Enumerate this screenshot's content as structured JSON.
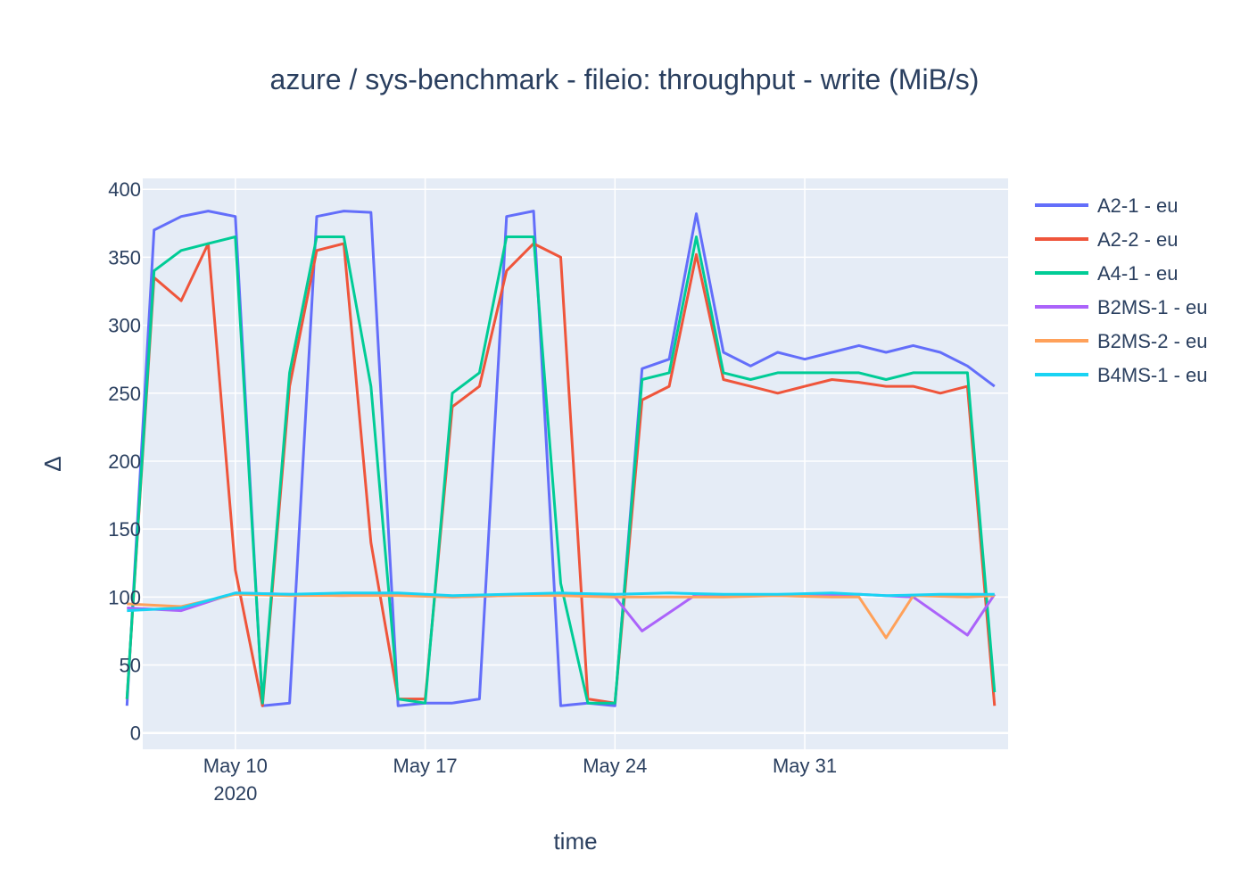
{
  "chart_data": {
    "type": "line",
    "title": "azure / sys-benchmark - fileio: throughput - write (MiB/s)",
    "xlabel": "time",
    "ylabel": "Δ",
    "x_range": [
      "2020-05-06T14:00",
      "2020-06-07T12:00"
    ],
    "xlim": [
      "2020-05-06T14:00",
      "2020-06-07T12:00"
    ],
    "ylim": [
      -12,
      408
    ],
    "y_ticks": [
      0,
      50,
      100,
      150,
      200,
      250,
      300,
      350,
      400
    ],
    "y_tick_labels": [
      "0",
      "50",
      "100",
      "150",
      "200",
      "250",
      "300",
      "350",
      "400"
    ],
    "x_ticks": [
      {
        "value": "2020-05-10",
        "label": "May 10",
        "sub": "2020"
      },
      {
        "value": "2020-05-17",
        "label": "May 17",
        "sub": ""
      },
      {
        "value": "2020-05-24",
        "label": "May 24",
        "sub": ""
      },
      {
        "value": "2020-05-31",
        "label": "May 31",
        "sub": ""
      }
    ],
    "grid": true,
    "legend_position": "right",
    "plot_bgcolor": "#e5ecf6",
    "series": [
      {
        "name": "A2-1 - eu",
        "color": "#636efa",
        "x": [
          "2020-05-06",
          "2020-05-07",
          "2020-05-08",
          "2020-05-09",
          "2020-05-10",
          "2020-05-11",
          "2020-05-12",
          "2020-05-13",
          "2020-05-14",
          "2020-05-15",
          "2020-05-16",
          "2020-05-17",
          "2020-05-18",
          "2020-05-19",
          "2020-05-20",
          "2020-05-21",
          "2020-05-22",
          "2020-05-23",
          "2020-05-24",
          "2020-05-25",
          "2020-05-26",
          "2020-05-27",
          "2020-05-28",
          "2020-05-29",
          "2020-05-30",
          "2020-05-31",
          "2020-06-01",
          "2020-06-02",
          "2020-06-03",
          "2020-06-04",
          "2020-06-05",
          "2020-06-06",
          "2020-06-07"
        ],
        "values": [
          20,
          370,
          380,
          384,
          380,
          20,
          22,
          380,
          384,
          383,
          20,
          22,
          22,
          25,
          380,
          384,
          20,
          22,
          20,
          268,
          275,
          382,
          280,
          270,
          280,
          275,
          280,
          285,
          280,
          285,
          280,
          270,
          255
        ]
      },
      {
        "name": "A2-2 - eu",
        "color": "#ef553b",
        "x": [
          "2020-05-06",
          "2020-05-07",
          "2020-05-08",
          "2020-05-09",
          "2020-05-10",
          "2020-05-11",
          "2020-05-12",
          "2020-05-13",
          "2020-05-14",
          "2020-05-15",
          "2020-05-16",
          "2020-05-17",
          "2020-05-18",
          "2020-05-19",
          "2020-05-20",
          "2020-05-21",
          "2020-05-22",
          "2020-05-23",
          "2020-05-24",
          "2020-05-25",
          "2020-05-26",
          "2020-05-27",
          "2020-05-28",
          "2020-05-29",
          "2020-05-30",
          "2020-05-31",
          "2020-06-01",
          "2020-06-02",
          "2020-06-03",
          "2020-06-04",
          "2020-06-05",
          "2020-06-06",
          "2020-06-07"
        ],
        "values": [
          25,
          335,
          318,
          360,
          120,
          20,
          255,
          355,
          360,
          140,
          25,
          25,
          240,
          255,
          340,
          360,
          350,
          25,
          22,
          245,
          255,
          352,
          260,
          255,
          250,
          255,
          260,
          258,
          255,
          255,
          250,
          255,
          20
        ]
      },
      {
        "name": "A4-1 - eu",
        "color": "#00cc96",
        "x": [
          "2020-05-06",
          "2020-05-07",
          "2020-05-08",
          "2020-05-09",
          "2020-05-10",
          "2020-05-11",
          "2020-05-12",
          "2020-05-13",
          "2020-05-14",
          "2020-05-15",
          "2020-05-16",
          "2020-05-17",
          "2020-05-18",
          "2020-05-19",
          "2020-05-20",
          "2020-05-21",
          "2020-05-22",
          "2020-05-23",
          "2020-05-24",
          "2020-05-25",
          "2020-05-26",
          "2020-05-27",
          "2020-05-28",
          "2020-05-29",
          "2020-05-30",
          "2020-05-31",
          "2020-06-01",
          "2020-06-02",
          "2020-06-03",
          "2020-06-04",
          "2020-06-05",
          "2020-06-06",
          "2020-06-07"
        ],
        "values": [
          25,
          340,
          355,
          360,
          365,
          22,
          265,
          365,
          365,
          255,
          25,
          22,
          250,
          265,
          365,
          365,
          110,
          22,
          22,
          260,
          265,
          365,
          265,
          260,
          265,
          265,
          265,
          265,
          260,
          265,
          265,
          265,
          30
        ]
      },
      {
        "name": "B2MS-1 - eu",
        "color": "#ab63fa",
        "x": [
          "2020-05-06",
          "2020-05-08",
          "2020-05-10",
          "2020-05-12",
          "2020-05-14",
          "2020-05-16",
          "2020-05-18",
          "2020-05-20",
          "2020-05-22",
          "2020-05-24",
          "2020-05-25",
          "2020-05-27",
          "2020-05-29",
          "2020-05-31",
          "2020-06-02",
          "2020-06-04",
          "2020-06-06",
          "2020-06-07"
        ],
        "values": [
          92,
          90,
          103,
          102,
          101,
          102,
          100,
          101,
          102,
          100,
          75,
          102,
          101,
          101,
          102,
          100,
          72,
          102
        ]
      },
      {
        "name": "B2MS-2 - eu",
        "color": "#ffa15a",
        "x": [
          "2020-05-06",
          "2020-05-08",
          "2020-05-10",
          "2020-05-12",
          "2020-05-14",
          "2020-05-16",
          "2020-05-18",
          "2020-05-20",
          "2020-05-22",
          "2020-05-24",
          "2020-05-26",
          "2020-05-28",
          "2020-05-30",
          "2020-06-01",
          "2020-06-02",
          "2020-06-03",
          "2020-06-04",
          "2020-06-06",
          "2020-06-07"
        ],
        "values": [
          95,
          93,
          102,
          101,
          101,
          101,
          100,
          101,
          101,
          100,
          100,
          100,
          101,
          100,
          100,
          70,
          101,
          100,
          101
        ]
      },
      {
        "name": "B4MS-1 - eu",
        "color": "#19d3f3",
        "x": [
          "2020-05-06",
          "2020-05-08",
          "2020-05-10",
          "2020-05-12",
          "2020-05-14",
          "2020-05-16",
          "2020-05-18",
          "2020-05-20",
          "2020-05-22",
          "2020-05-24",
          "2020-05-26",
          "2020-05-28",
          "2020-05-30",
          "2020-06-01",
          "2020-06-03",
          "2020-06-05",
          "2020-06-07"
        ],
        "values": [
          90,
          92,
          103,
          102,
          103,
          103,
          101,
          102,
          103,
          102,
          103,
          102,
          102,
          103,
          101,
          102,
          102
        ]
      }
    ]
  }
}
